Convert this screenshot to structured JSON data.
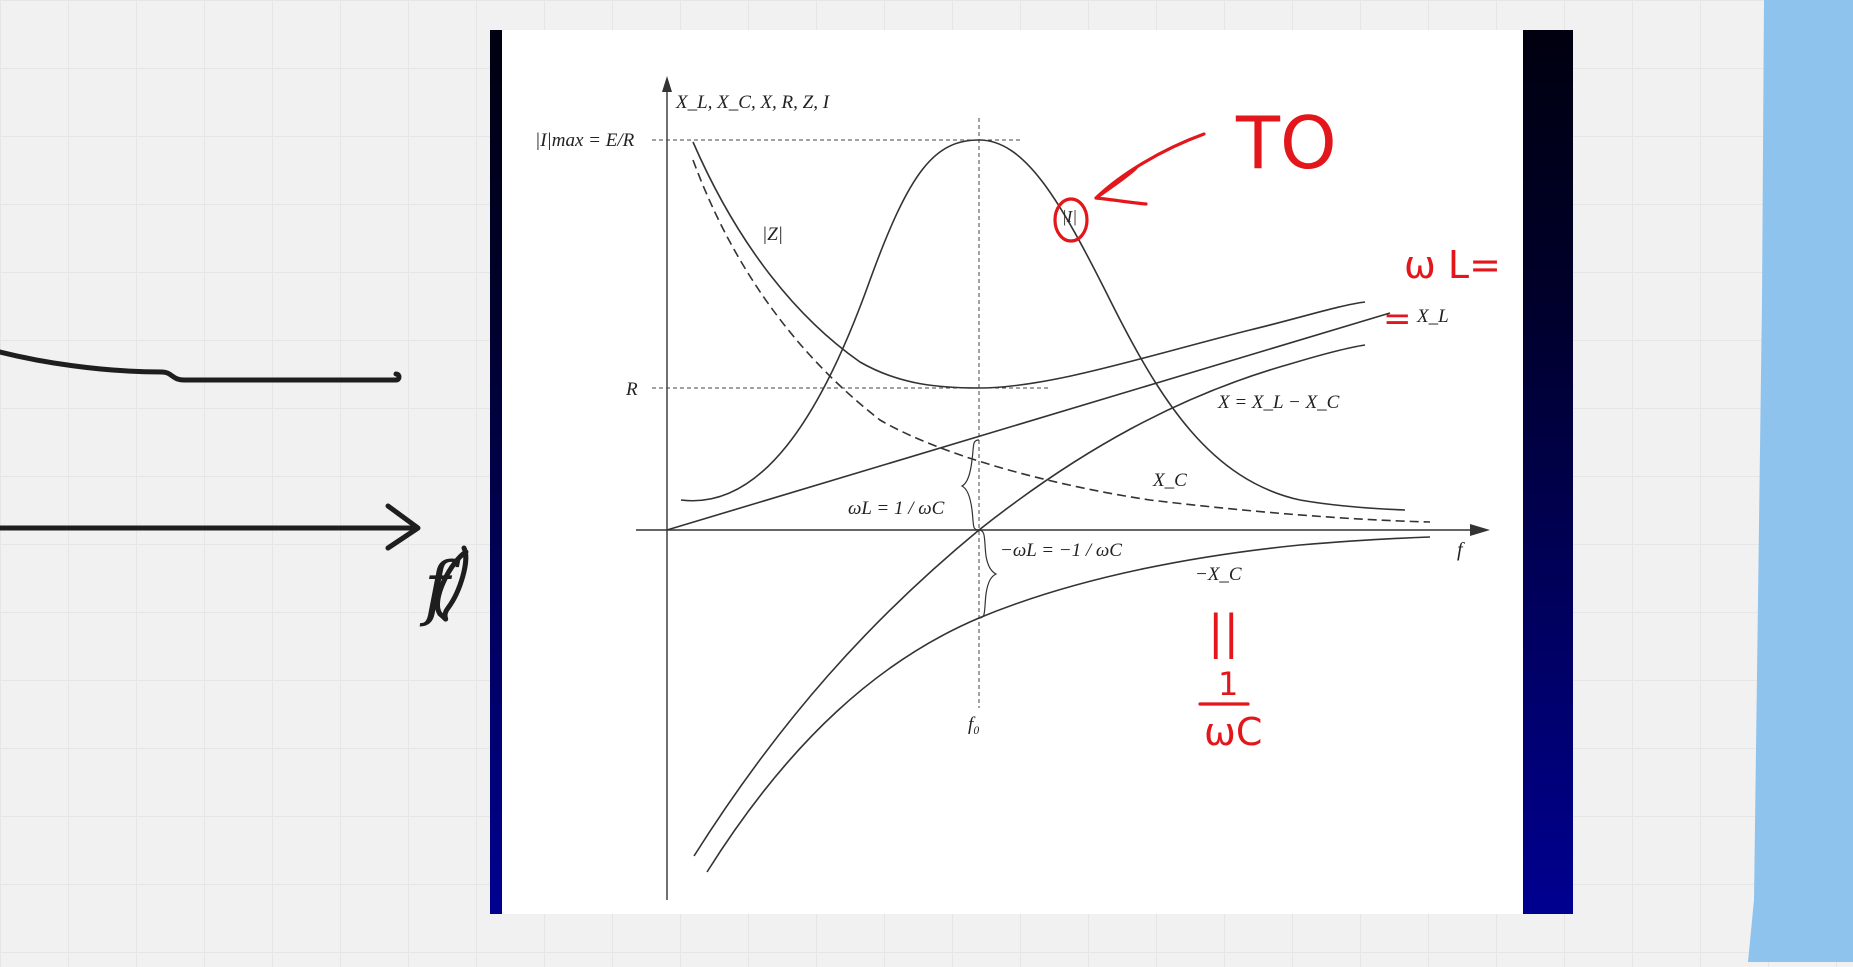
{
  "colors": {
    "canvas": "#f1f1f1",
    "grid": "#e6e6e6",
    "curve": "#333333",
    "annotation_red": "#e3161b",
    "sticky_blue": "#8ec3ee",
    "frame_dark": "#000010",
    "frame_blue": "#000090"
  },
  "handwriting": {
    "left_axis_letter": "f",
    "circle_note": "TO",
    "wl_note": "ω L=",
    "equal_note": "=",
    "parallel_note": "||",
    "frac_num": "1",
    "frac_den": "ωC"
  },
  "diagram": {
    "y_axis_title": "X_L, X_C, X, R, Z, I",
    "x_axis_title": "f",
    "imax_label": "|I|max = E/R",
    "r_label": "R",
    "z_label": "|Z|",
    "i_label": "|I|",
    "xl_label": "X_L",
    "x_label": "X = X_L − X_C",
    "xc_label": "X_C",
    "neg_xc_label": "−X_C",
    "resonance_label": "ωL = 1 / ωC",
    "neg_resonance_label": "−ωL = −1 / ωC",
    "f0_label": "f₀"
  }
}
